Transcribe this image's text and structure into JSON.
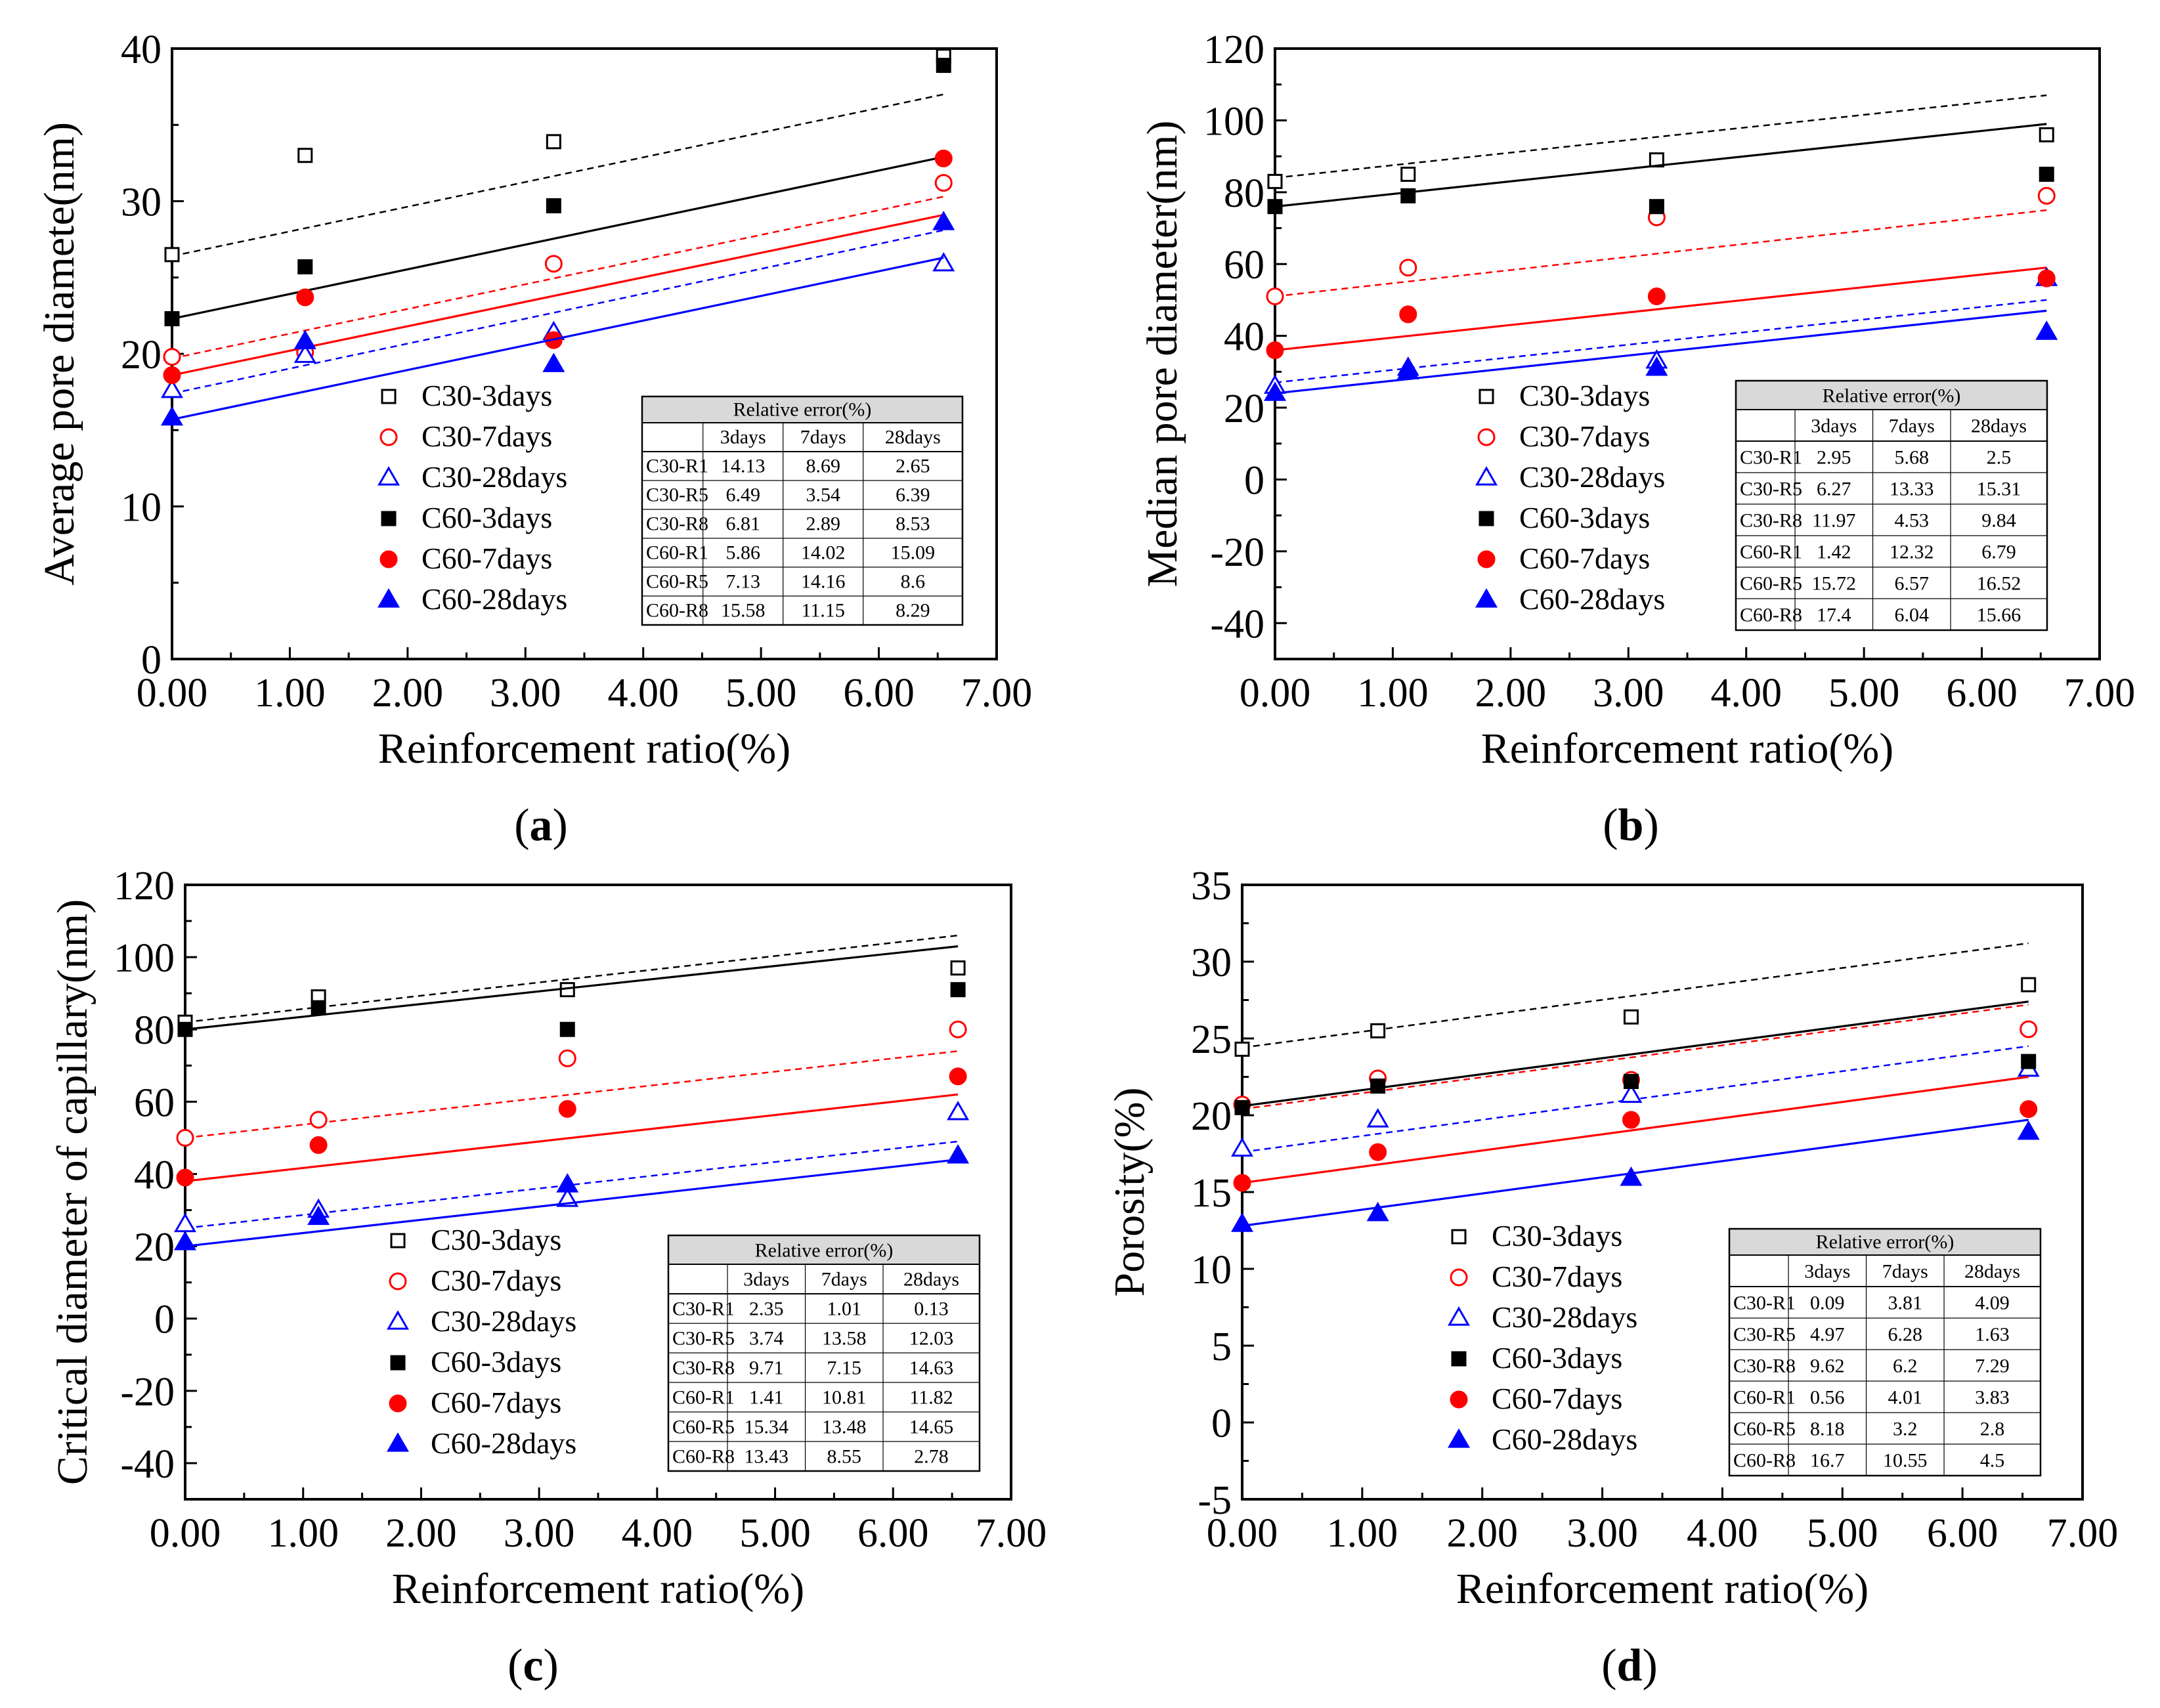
{
  "colors": {
    "black": "#000000",
    "red": "#ff0000",
    "blue": "#0000ff",
    "header_bg": "#d9d9d9"
  },
  "legend": [
    "C30-3days",
    "C30-7days",
    "C30-28days",
    "C60-3days",
    "C60-7days",
    "C60-28days"
  ],
  "chart_data": [
    {
      "type": "scatter",
      "panel_label": "a",
      "xlabel": "Reinforcement ratio(%)",
      "ylabel": "Average pore diamete(nm)",
      "xlim": [
        0,
        7
      ],
      "ylim": [
        0,
        40
      ],
      "x_ticks": [
        "0.00",
        "1.00",
        "2.00",
        "3.00",
        "4.00",
        "5.00",
        "6.00",
        "7.00"
      ],
      "y_ticks": [
        "0",
        "10",
        "20",
        "30",
        "40"
      ],
      "x": [
        0,
        1.13,
        3.24,
        6.55
      ],
      "series": [
        {
          "name": "C30-3days",
          "values": [
            26.5,
            33.0,
            33.9,
            39.5
          ],
          "fit": [
            26.4,
            37.0
          ]
        },
        {
          "name": "C30-7days",
          "values": [
            19.8,
            20.1,
            25.9,
            31.2
          ],
          "fit": [
            19.7,
            30.3
          ]
        },
        {
          "name": "C30-28days",
          "values": [
            17.6,
            19.9,
            21.4,
            25.9
          ],
          "fit": [
            17.4,
            28.1
          ]
        },
        {
          "name": "C60-3days",
          "values": [
            22.3,
            25.7,
            29.7,
            38.9
          ],
          "fit": [
            22.3,
            32.9
          ]
        },
        {
          "name": "C60-7days",
          "values": [
            18.6,
            23.7,
            20.9,
            32.8
          ],
          "fit": [
            18.6,
            29.1
          ]
        },
        {
          "name": "C60-28days",
          "values": [
            15.8,
            20.8,
            19.3,
            28.6
          ],
          "fit": [
            15.7,
            26.3
          ]
        }
      ],
      "table": {
        "title": "Relative error(%)",
        "columns": [
          "",
          "3days",
          "7days",
          "28days"
        ],
        "rows": [
          [
            "C30-R1",
            "14.13",
            "8.69",
            "2.65"
          ],
          [
            "C30-R5",
            "6.49",
            "3.54",
            "6.39"
          ],
          [
            "C30-R8",
            "6.81",
            "2.89",
            "8.53"
          ],
          [
            "C60-R1",
            "5.86",
            "14.02",
            "15.09"
          ],
          [
            "C60-R5",
            "7.13",
            "14.16",
            "8.6"
          ],
          [
            "C60-R8",
            "15.58",
            "11.15",
            "8.29"
          ]
        ]
      }
    },
    {
      "type": "scatter",
      "panel_label": "b",
      "xlabel": "Reinforcement ratio(%)",
      "ylabel": "Median pore diameter(nm)",
      "xlim": [
        0,
        7
      ],
      "ylim": [
        -50,
        120
      ],
      "x_ticks": [
        "0.00",
        "1.00",
        "2.00",
        "3.00",
        "4.00",
        "5.00",
        "6.00",
        "7.00"
      ],
      "y_ticks": [
        "-40",
        "-20",
        "0",
        "20",
        "40",
        "60",
        "80",
        "100",
        "120"
      ],
      "x": [
        0,
        1.13,
        3.24,
        6.55
      ],
      "series": [
        {
          "name": "C30-3days",
          "values": [
            83,
            85,
            89,
            96
          ],
          "fit": [
            84,
            107
          ]
        },
        {
          "name": "C30-7days",
          "values": [
            51,
            59,
            73,
            79
          ],
          "fit": [
            51,
            75
          ]
        },
        {
          "name": "C30-28days",
          "values": [
            26,
            31,
            33,
            56
          ],
          "fit": [
            27,
            50
          ]
        },
        {
          "name": "C60-3days",
          "values": [
            76,
            79,
            76,
            85
          ],
          "fit": [
            76,
            99
          ]
        },
        {
          "name": "C60-7days",
          "values": [
            36,
            46,
            51,
            56
          ],
          "fit": [
            36,
            59
          ]
        },
        {
          "name": "C60-28days",
          "values": [
            24,
            30,
            31,
            41
          ],
          "fit": [
            24,
            47
          ]
        }
      ],
      "table": {
        "title": "Relative error(%)",
        "columns": [
          "",
          "3days",
          "7days",
          "28days"
        ],
        "rows": [
          [
            "C30-R1",
            "2.95",
            "5.68",
            "2.5"
          ],
          [
            "C30-R5",
            "6.27",
            "13.33",
            "15.31"
          ],
          [
            "C30-R8",
            "11.97",
            "4.53",
            "9.84"
          ],
          [
            "C60-R1",
            "1.42",
            "12.32",
            "6.79"
          ],
          [
            "C60-R5",
            "15.72",
            "6.57",
            "16.52"
          ],
          [
            "C60-R8",
            "17.4",
            "6.04",
            "15.66"
          ]
        ]
      }
    },
    {
      "type": "scatter",
      "panel_label": "c",
      "xlabel": "Reinforcement ratio(%)",
      "ylabel": "Critical diameter of capillary(nm)",
      "xlim": [
        0,
        7
      ],
      "ylim": [
        -50,
        120
      ],
      "x_ticks": [
        "0.00",
        "1.00",
        "2.00",
        "3.00",
        "4.00",
        "5.00",
        "6.00",
        "7.00"
      ],
      "y_ticks": [
        "-40",
        "-20",
        "0",
        "20",
        "40",
        "60",
        "80",
        "100",
        "120"
      ],
      "x": [
        0,
        1.13,
        3.24,
        6.55
      ],
      "series": [
        {
          "name": "C30-3days",
          "values": [
            82,
            89,
            91,
            97
          ],
          "fit": [
            82,
            106
          ]
        },
        {
          "name": "C30-7days",
          "values": [
            50,
            55,
            72,
            80
          ],
          "fit": [
            50,
            74
          ]
        },
        {
          "name": "C30-28days",
          "values": [
            26,
            30,
            33,
            57
          ],
          "fit": [
            25,
            49
          ]
        },
        {
          "name": "C60-3days",
          "values": [
            80,
            86,
            80,
            91
          ],
          "fit": [
            80,
            103
          ]
        },
        {
          "name": "C60-7days",
          "values": [
            39,
            48,
            58,
            67
          ],
          "fit": [
            38,
            62
          ]
        },
        {
          "name": "C60-28days",
          "values": [
            21,
            28,
            37,
            45
          ],
          "fit": [
            20,
            44
          ]
        }
      ],
      "table": {
        "title": "Relative error(%)",
        "columns": [
          "",
          "3days",
          "7days",
          "28days"
        ],
        "rows": [
          [
            "C30-R1",
            "2.35",
            "1.01",
            "0.13"
          ],
          [
            "C30-R5",
            "3.74",
            "13.58",
            "12.03"
          ],
          [
            "C30-R8",
            "9.71",
            "7.15",
            "14.63"
          ],
          [
            "C60-R1",
            "1.41",
            "10.81",
            "11.82"
          ],
          [
            "C60-R5",
            "15.34",
            "13.48",
            "14.65"
          ],
          [
            "C60-R8",
            "13.43",
            "8.55",
            "2.78"
          ]
        ]
      }
    },
    {
      "type": "scatter",
      "panel_label": "d",
      "xlabel": "Reinforcement ratio(%)",
      "ylabel": "Porosity(%)",
      "xlim": [
        0,
        7
      ],
      "ylim": [
        -5,
        35
      ],
      "x_ticks": [
        "0.00",
        "1.00",
        "2.00",
        "3.00",
        "4.00",
        "5.00",
        "6.00",
        "7.00"
      ],
      "y_ticks": [
        "-5",
        "0",
        "5",
        "10",
        "15",
        "20",
        "25",
        "30",
        "35"
      ],
      "x": [
        0,
        1.13,
        3.24,
        6.55
      ],
      "series": [
        {
          "name": "C30-3days",
          "values": [
            24.3,
            25.5,
            26.4,
            28.5
          ],
          "fit": [
            24.4,
            31.2
          ]
        },
        {
          "name": "C30-7days",
          "values": [
            20.7,
            22.4,
            22.3,
            25.6
          ],
          "fit": [
            20.4,
            27.2
          ]
        },
        {
          "name": "C30-28days",
          "values": [
            17.8,
            19.7,
            21.3,
            23.0
          ],
          "fit": [
            17.6,
            24.5
          ]
        },
        {
          "name": "C60-3days",
          "values": [
            20.5,
            21.9,
            22.2,
            23.5
          ],
          "fit": [
            20.6,
            27.4
          ]
        },
        {
          "name": "C60-7days",
          "values": [
            15.6,
            17.6,
            19.7,
            20.4
          ],
          "fit": [
            15.6,
            22.5
          ]
        },
        {
          "name": "C60-28days",
          "values": [
            12.9,
            13.6,
            15.9,
            18.9
          ],
          "fit": [
            12.8,
            19.7
          ]
        }
      ],
      "table": {
        "title": "Relative error(%)",
        "columns": [
          "",
          "3days",
          "7days",
          "28days"
        ],
        "rows": [
          [
            "C30-R1",
            "0.09",
            "3.81",
            "4.09"
          ],
          [
            "C30-R5",
            "4.97",
            "6.28",
            "1.63"
          ],
          [
            "C30-R8",
            "9.62",
            "6.2",
            "7.29"
          ],
          [
            "C60-R1",
            "0.56",
            "4.01",
            "3.83"
          ],
          [
            "C60-R5",
            "8.18",
            "3.2",
            "2.8"
          ],
          [
            "C60-R8",
            "16.7",
            "10.55",
            "4.5"
          ]
        ]
      }
    }
  ]
}
